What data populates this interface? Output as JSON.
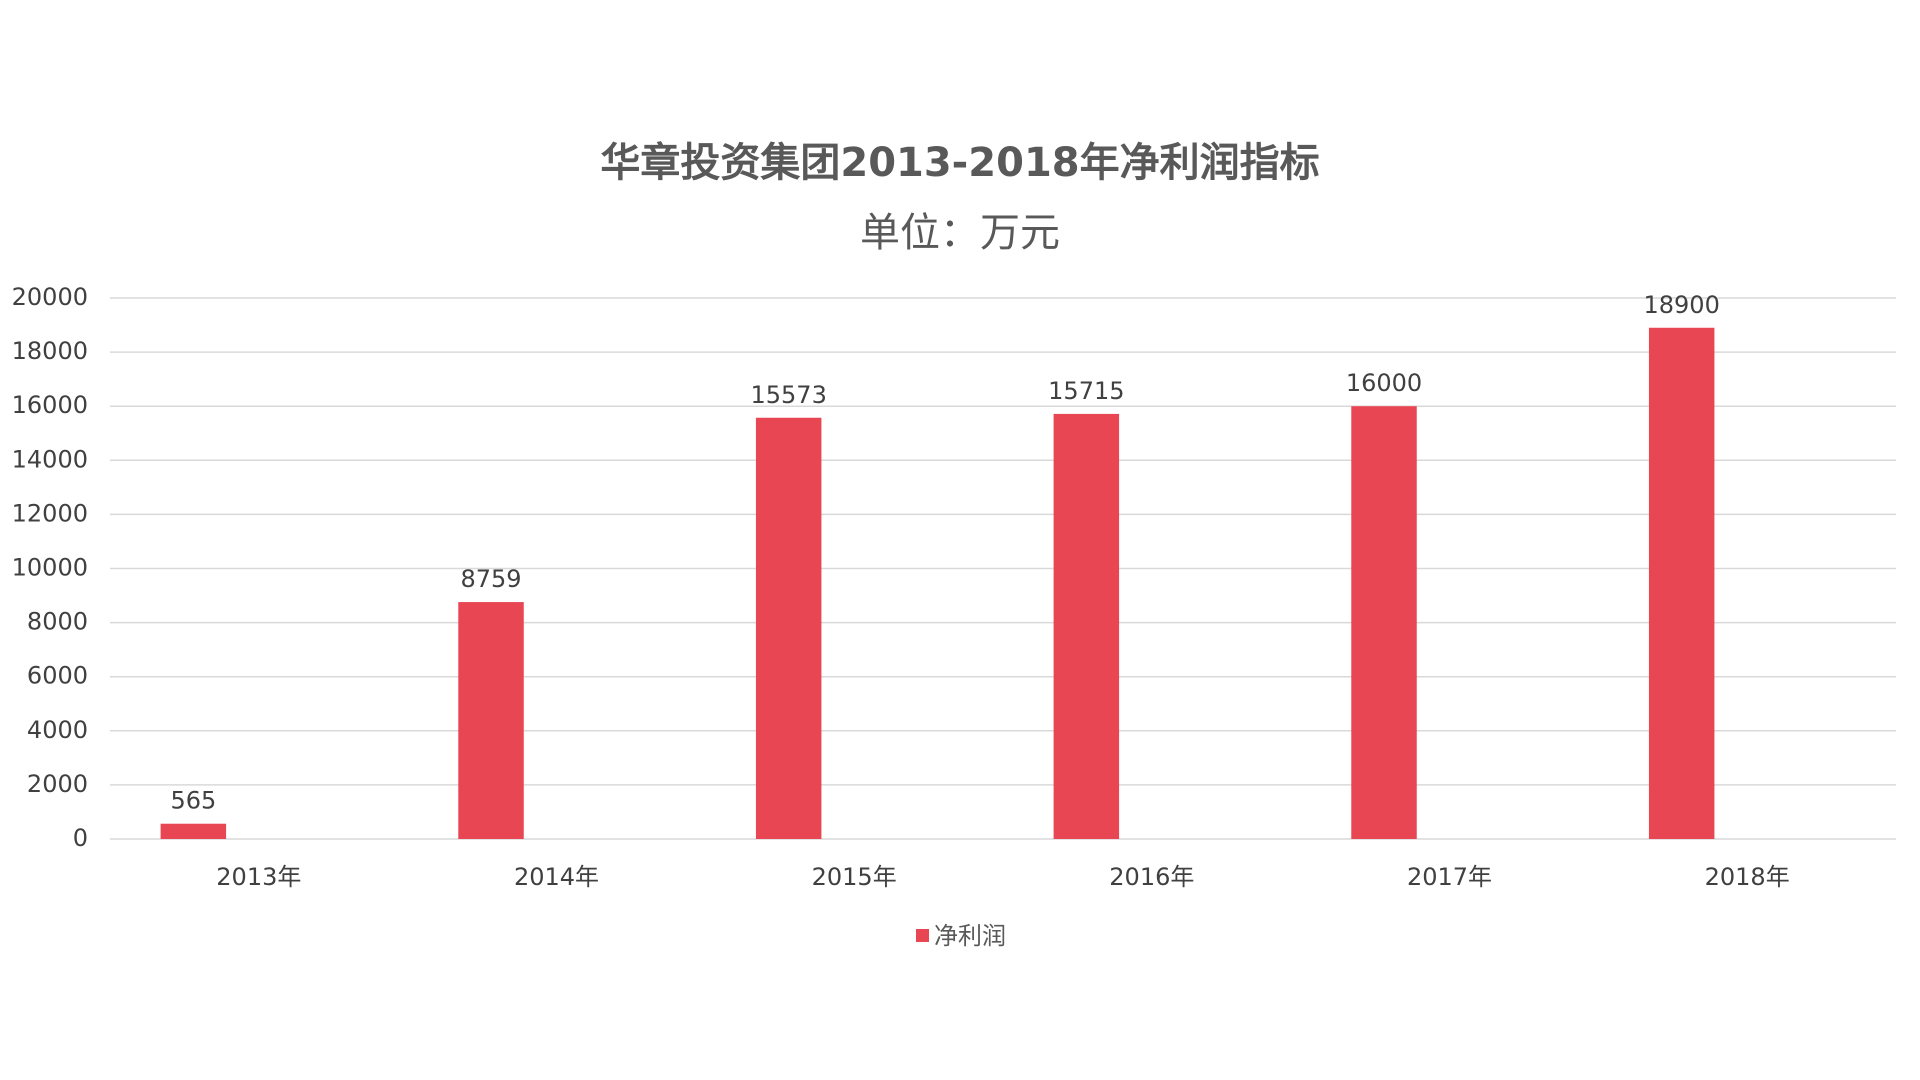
{
  "chart_data": {
    "type": "bar",
    "title": "华章投资集团2013-2018年净利润指标",
    "subtitle": "单位：万元",
    "categories": [
      "2013年",
      "2014年",
      "2015年",
      "2016年",
      "2017年",
      "2018年"
    ],
    "series": [
      {
        "name": "净利润",
        "color": "#e94654",
        "values": [
          565,
          8759,
          15573,
          15715,
          16000,
          18900
        ]
      }
    ],
    "ylim": [
      0,
      20000
    ],
    "yticks": [
      0,
      2000,
      4000,
      6000,
      8000,
      10000,
      12000,
      14000,
      16000,
      18000,
      20000
    ],
    "grid": true,
    "legend": "bottom"
  }
}
